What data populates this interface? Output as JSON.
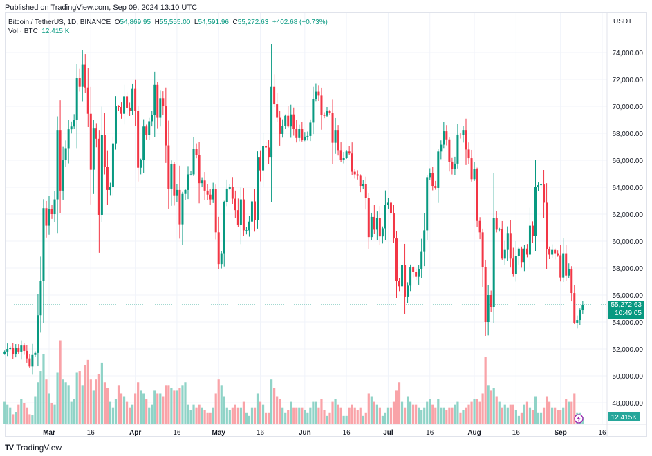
{
  "published": "Published on TradingView.com, Sep 09, 2024 13:10 UTC",
  "legend": {
    "symbol": "Bitcoin / TetherUS, 1D, BINANCE",
    "o_label": "O",
    "o": "54,869.95",
    "h_label": "H",
    "h": "55,555.00",
    "l_label": "L",
    "l": "54,591.96",
    "c_label": "C",
    "c": "55,272.63",
    "change": "+402.68 (+0.73%)",
    "vol_label": "Vol · BTC",
    "vol": "12.415 K"
  },
  "currency": "USDT",
  "last_price_label": "55,272.63",
  "countdown": "10:49:05",
  "last_volume_label": "12.415K",
  "brand": "TradingView",
  "colors": {
    "up": "#089981",
    "down": "#f23645",
    "up_volume": "#8fd3c7",
    "down_volume": "#f9a3a8",
    "price_line": "#089981"
  },
  "chart_data": {
    "type": "candlestick",
    "title": "Bitcoin / TetherUS, 1D, BINANCE",
    "first_date": "2024-02-14",
    "last_date": "2024-09-09",
    "interval": "1D",
    "ylim": [
      46500,
      76000
    ],
    "y_ticks": [
      "74,000.00",
      "72,000.00",
      "70,000.00",
      "68,000.00",
      "66,000.00",
      "64,000.00",
      "62,000.00",
      "60,000.00",
      "58,000.00",
      "56,000.00",
      "54,000.00",
      "52,000.00",
      "50,000.00",
      "48,000.00"
    ],
    "x_ticks": [
      {
        "label": "Mar",
        "date": "2024-03-01",
        "bold": true
      },
      {
        "label": "16",
        "date": "2024-03-16"
      },
      {
        "label": "Apr",
        "date": "2024-04-01",
        "bold": true
      },
      {
        "label": "16",
        "date": "2024-04-16"
      },
      {
        "label": "May",
        "date": "2024-05-01",
        "bold": true
      },
      {
        "label": "16",
        "date": "2024-05-16"
      },
      {
        "label": "Jun",
        "date": "2024-06-01",
        "bold": true
      },
      {
        "label": "16",
        "date": "2024-06-16"
      },
      {
        "label": "Jul",
        "date": "2024-07-01",
        "bold": true
      },
      {
        "label": "16",
        "date": "2024-07-16"
      },
      {
        "label": "Aug",
        "date": "2024-08-01",
        "bold": true
      },
      {
        "label": "16",
        "date": "2024-08-16"
      },
      {
        "label": "Sep",
        "date": "2024-09-01",
        "bold": true
      },
      {
        "label": "16",
        "date": "2024-09-16"
      }
    ],
    "grid": true,
    "last": {
      "open": 54869.95,
      "high": 55555.0,
      "low": 54591.96,
      "close": 55272.63,
      "volume_k": 12.415
    },
    "closes": [
      51800,
      52000,
      52100,
      51600,
      52100,
      51800,
      52250,
      51850,
      51300,
      50700,
      51550,
      51700,
      54500,
      57050,
      62450,
      61150,
      62400,
      62000,
      63100,
      68250,
      63750,
      66050,
      66900,
      68300,
      68500,
      69000,
      72100,
      71450,
      73100,
      71400,
      69450,
      65300,
      68400,
      67600,
      61950,
      67850,
      65500,
      63800,
      64050,
      67250,
      70000,
      69950,
      69450,
      70750,
      69900,
      69650,
      71300,
      69650,
      65450,
      66000,
      68500,
      67850,
      68900,
      69350,
      71600,
      69150,
      70600,
      70000,
      67100,
      63900,
      65700,
      63400,
      63800,
      61250,
      63500,
      63800,
      64950,
      64950,
      66850,
      66400,
      64300,
      64500,
      63750,
      63450,
      63100,
      63850,
      60650,
      58300,
      59100,
      62900,
      63900,
      64000,
      63150,
      62300,
      61200,
      63100,
      60800,
      60800,
      61450,
      62950,
      61550,
      66250,
      65250,
      67050,
      66950,
      66250,
      71450,
      70150,
      69150,
      67950,
      68550,
      69300,
      68500,
      69400,
      68350,
      67650,
      68350,
      67500,
      67750,
      67800,
      68800,
      70550,
      71100,
      70800,
      69350,
      69300,
      69650,
      69500,
      67300,
      68250,
      66750,
      66000,
      66200,
      66650,
      66500,
      65150,
      64950,
      64850,
      64100,
      64250,
      63200,
      60300,
      61800,
      60850,
      61700,
      60350,
      60950,
      62700,
      62850,
      62050,
      60200,
      57050,
      56650,
      58250,
      55850,
      56700,
      58050,
      57700,
      57350,
      57900,
      59200,
      60800,
      64750,
      65050,
      64100,
      63950,
      66650,
      67150,
      68150,
      67550,
      65900,
      65350,
      65750,
      67900,
      67850,
      68250,
      66800,
      66150,
      64600,
      65350,
      61500,
      60650,
      58100,
      54000,
      56000,
      55100,
      61700,
      60850,
      60900,
      58700,
      59350,
      60600,
      58700,
      57550,
      58900,
      59450,
      58450,
      59450,
      59000,
      61150,
      60400,
      64050,
      64150,
      64200,
      62850,
      59400,
      59000,
      59350,
      59100,
      58950,
      57300,
      59100,
      57450,
      57950,
      56150,
      53950,
      54150,
      54869.95,
      55272.63
    ],
    "volumes_k": [
      40,
      35,
      30,
      18,
      22,
      35,
      45,
      38,
      30,
      18,
      16,
      50,
      75,
      95,
      125,
      80,
      55,
      38,
      35,
      92,
      150,
      80,
      75,
      70,
      40,
      45,
      92,
      95,
      70,
      105,
      115,
      80,
      60,
      80,
      90,
      110,
      75,
      65,
      40,
      30,
      45,
      70,
      55,
      50,
      40,
      30,
      35,
      55,
      75,
      60,
      55,
      45,
      30,
      35,
      60,
      55,
      55,
      50,
      70,
      70,
      65,
      60,
      60,
      65,
      70,
      75,
      35,
      25,
      35,
      30,
      35,
      30,
      25,
      20,
      20,
      30,
      55,
      80,
      70,
      50,
      30,
      25,
      30,
      35,
      30,
      30,
      40,
      20,
      15,
      30,
      30,
      55,
      40,
      35,
      20,
      20,
      80,
      65,
      50,
      45,
      30,
      20,
      25,
      40,
      30,
      30,
      30,
      30,
      25,
      20,
      30,
      40,
      40,
      30,
      45,
      25,
      15,
      20,
      40,
      45,
      35,
      30,
      15,
      15,
      30,
      35,
      30,
      25,
      30,
      15,
      20,
      55,
      50,
      40,
      35,
      30,
      15,
      20,
      30,
      30,
      40,
      60,
      75,
      40,
      30,
      50,
      40,
      35,
      35,
      30,
      25,
      30,
      40,
      45,
      35,
      30,
      45,
      30,
      30,
      25,
      30,
      30,
      35,
      40,
      20,
      25,
      30,
      35,
      40,
      45,
      45,
      40,
      55,
      120,
      70,
      60,
      65,
      50,
      40,
      30,
      35,
      30,
      35,
      35,
      25,
      15,
      20,
      35,
      40,
      30,
      25,
      50,
      20,
      20,
      30,
      50,
      40,
      30,
      30,
      25,
      25,
      30,
      45,
      40,
      40,
      55,
      20,
      20,
      12.415
    ]
  }
}
